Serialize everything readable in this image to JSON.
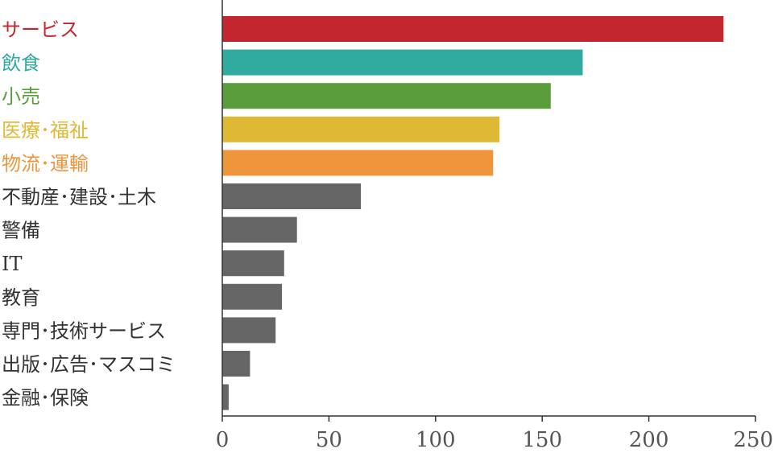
{
  "chart_data": {
    "type": "bar",
    "orientation": "horizontal",
    "title": "",
    "xlabel": "",
    "ylabel": "",
    "xlim": [
      0,
      250
    ],
    "grid": false,
    "legend": "none",
    "x_ticks": [
      0,
      50,
      100,
      150,
      200,
      250
    ],
    "categories": [
      "サービス",
      "飲食",
      "小売",
      "医療･福祉",
      "物流･運輸",
      "不動産･建設･土木",
      "警備",
      "IT",
      "教育",
      "専門･技術サービス",
      "出版･広告･マスコミ",
      "金融･保険"
    ],
    "values": [
      235,
      169,
      154,
      130,
      127,
      65,
      35,
      29,
      28,
      25,
      13,
      3
    ],
    "colors": [
      "#c4262f",
      "#31ab9f",
      "#5a9e3c",
      "#dfb935",
      "#ef953c",
      "#666666",
      "#666666",
      "#666666",
      "#666666",
      "#666666",
      "#666666",
      "#666666"
    ],
    "label_colors": [
      "#c4262f",
      "#31ab9f",
      "#5a9e3c",
      "#dfb935",
      "#ef953c",
      "#333333",
      "#333333",
      "#333333",
      "#333333",
      "#333333",
      "#333333",
      "#333333"
    ]
  }
}
